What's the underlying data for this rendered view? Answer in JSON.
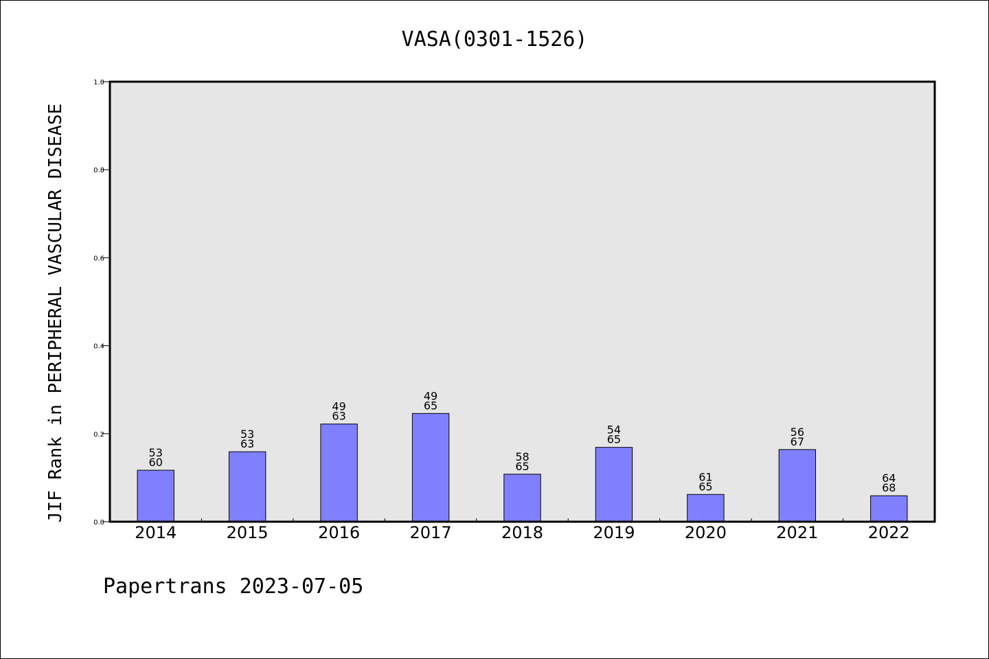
{
  "chart_data": {
    "type": "bar",
    "title": "VASA(0301-1526)",
    "ylabel": "JIF Rank in PERIPHERAL VASCULAR DISEASE",
    "xlabel": "",
    "categories": [
      "2014",
      "2015",
      "2016",
      "2017",
      "2018",
      "2019",
      "2020",
      "2021",
      "2022"
    ],
    "values": [
      0.117,
      0.159,
      0.222,
      0.246,
      0.108,
      0.169,
      0.062,
      0.164,
      0.059
    ],
    "bar_labels": [
      [
        "53",
        "60"
      ],
      [
        "53",
        "63"
      ],
      [
        "49",
        "63"
      ],
      [
        "49",
        "65"
      ],
      [
        "58",
        "65"
      ],
      [
        "54",
        "65"
      ],
      [
        "61",
        "65"
      ],
      [
        "56",
        "67"
      ],
      [
        "64",
        "68"
      ]
    ],
    "ylim": [
      0,
      1.0
    ],
    "yticks": [
      "0.0",
      "0.2",
      "0.4",
      "0.6",
      "0.8",
      "1.0"
    ],
    "grid": false,
    "colors": {
      "bar_fill": "#8080ff",
      "bar_stroke": "#000000",
      "plot_background": "#e6e6e6"
    }
  },
  "footer": "Papertrans 2023-07-05"
}
